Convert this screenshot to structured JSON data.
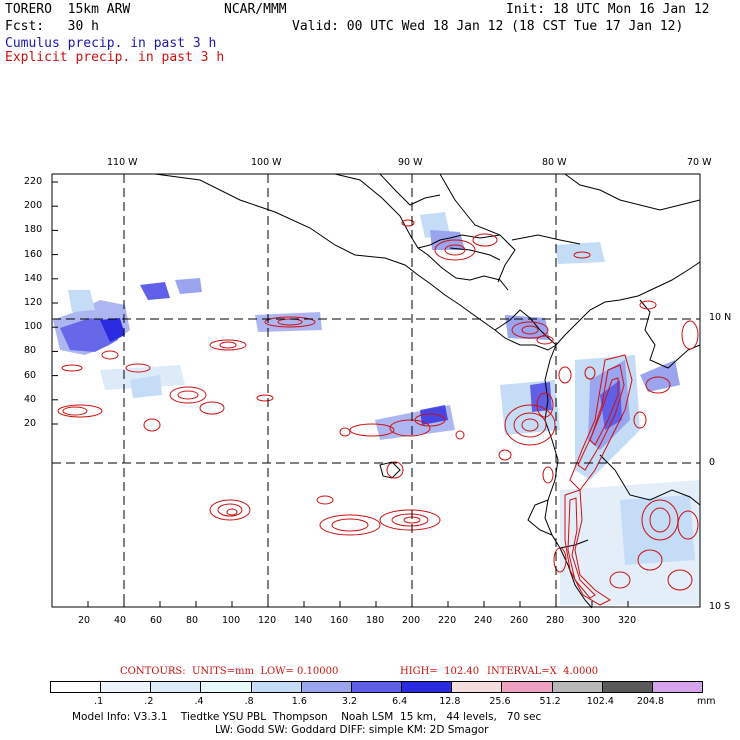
{
  "header": {
    "model": "TORERO  15km ARW",
    "org": "NCAR/MMM",
    "init": "Init: 18 UTC Mon 16 Jan 12",
    "fcst": "Fcst:   30 h",
    "valid": "Valid: 00 UTC Wed 18 Jan 12 (18 CST Tue 17 Jan 12)",
    "legend_cumulus": "Cumulus precip. in past 3 h",
    "legend_explicit": "Explicit precip. in past 3 h"
  },
  "colors": {
    "cumulus": "#1a1aa8",
    "explicit": "#cc1111",
    "grid": "#000000"
  },
  "map_axes": {
    "top_longitudes": [
      "110 W",
      "100 W",
      "90 W",
      "80 W",
      "70 W"
    ],
    "right_latitudes": [
      "10 N",
      "0",
      "10 S"
    ],
    "y_ticks": [
      "220",
      "200",
      "180",
      "160",
      "140",
      "120",
      "100",
      "80",
      "60",
      "40",
      "20"
    ],
    "x_ticks": [
      "20",
      "40",
      "60",
      "80",
      "100",
      "120",
      "140",
      "160",
      "180",
      "200",
      "220",
      "240",
      "260",
      "280",
      "300",
      "320"
    ]
  },
  "contour_info": {
    "units_label": "CONTOURS:  UNITS=mm  LOW= 0.10000",
    "high_label": "HIGH=  102.40",
    "interval_label": "INTERVAL=X  4.0000"
  },
  "colorbar": {
    "colors": [
      "#ffffff",
      "#eef4fb",
      "#ddeaf8",
      "#e8fbfb",
      "#c4dcf6",
      "#9aa4ef",
      "#5f5fe8",
      "#2a2ae0",
      "#f6dddd",
      "#f0a0c0",
      "#b8b8b8",
      "#5a5a5a",
      "#d6a4ec"
    ],
    "labels": [
      ".1",
      ".2",
      ".4",
      ".8",
      "1.6",
      "3.2",
      "6.4",
      "12.8",
      "25.6",
      "51.2",
      "102.4",
      "204.8"
    ],
    "unit": "mm"
  },
  "footer": {
    "line1": "Model Info: V3.3.1    Tiedtke YSU PBL  Thompson    Noah LSM  15 km,   44 levels,   70 sec",
    "line2": "LW: Godd SW: Goddard DIFF: simple KM: 2D Smagor"
  }
}
